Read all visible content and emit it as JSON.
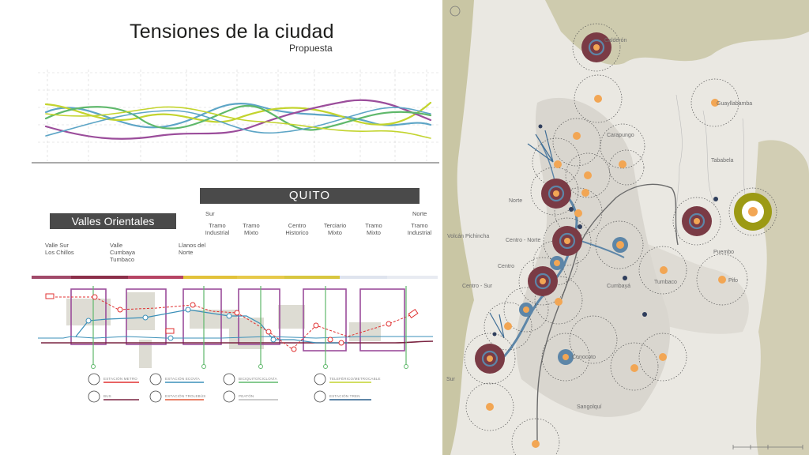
{
  "header": {
    "title": "Tensiones de la ciudad",
    "subtitle": "Propuesta"
  },
  "bars": {
    "quito": "QUITO",
    "valles": "Valles Orientales"
  },
  "zones": {
    "sur": "Sur",
    "norte": "Norte",
    "tramo_industrial_1": "Tramo\nIndustrial",
    "tramo_mixto_1": "Tramo\nMixto",
    "centro_historico": "Centro\nHistorico",
    "terciario_mixto": "Terciario\nMixto",
    "tramo_mixto_2": "Tramo\nMixto",
    "tramo_industrial_2": "Tramo\nIndustrial",
    "valle_sur": "Valle Sur\nLos Chillos",
    "valle_cumbaya": "Valle\nCumbaya\nTumbaco",
    "llanos_norte": "Llanos del\nNorte"
  },
  "legend": {
    "estacion_metro": "ESTACIÓN METRO",
    "bus": "BUS",
    "estacion_ecovia": "ESTACIÓN ECOVÍA",
    "estacion_trolebus": "ESTACIÓN TROLEBÚS",
    "bicicleta": "BICIQUITO/CICLOVÍA",
    "peaton": "PEATÓN",
    "teleferico": "TELEFÉRICO/METROCABLE",
    "estacion_tren": "ESTACIÓN TREN"
  },
  "map": {
    "places": {
      "calderon": "Calderón",
      "guayllabamba": "Guayllabamba",
      "carapungo": "Carapungo",
      "tababela": "Tababela",
      "norte": "Norte",
      "volcan": "Volcán Pichincha",
      "centro_norte": "Centro - Norte",
      "centro": "Centro",
      "puembo": "Puembo",
      "pifo": "Pifo",
      "cumbaya": "Cumbayá",
      "tumbaco": "Tumbaco",
      "centro_sur": "Centro - Sur",
      "conocoto": "Conocoto",
      "sur": "Sur",
      "sangolqui": "Sangolquí"
    },
    "colors": {
      "land": "#eae8e2",
      "mountains": "#c9c6a4",
      "urban": "#d9d6cf",
      "hub_fill": "#7a3b45",
      "node": "#f2a654",
      "link": "#5d86a8",
      "airport": "#9c9a14"
    }
  },
  "tension_lines": {
    "colors": [
      "#5da5c6",
      "#c3d42e",
      "#9b4d9b",
      "#5fb86b"
    ]
  }
}
